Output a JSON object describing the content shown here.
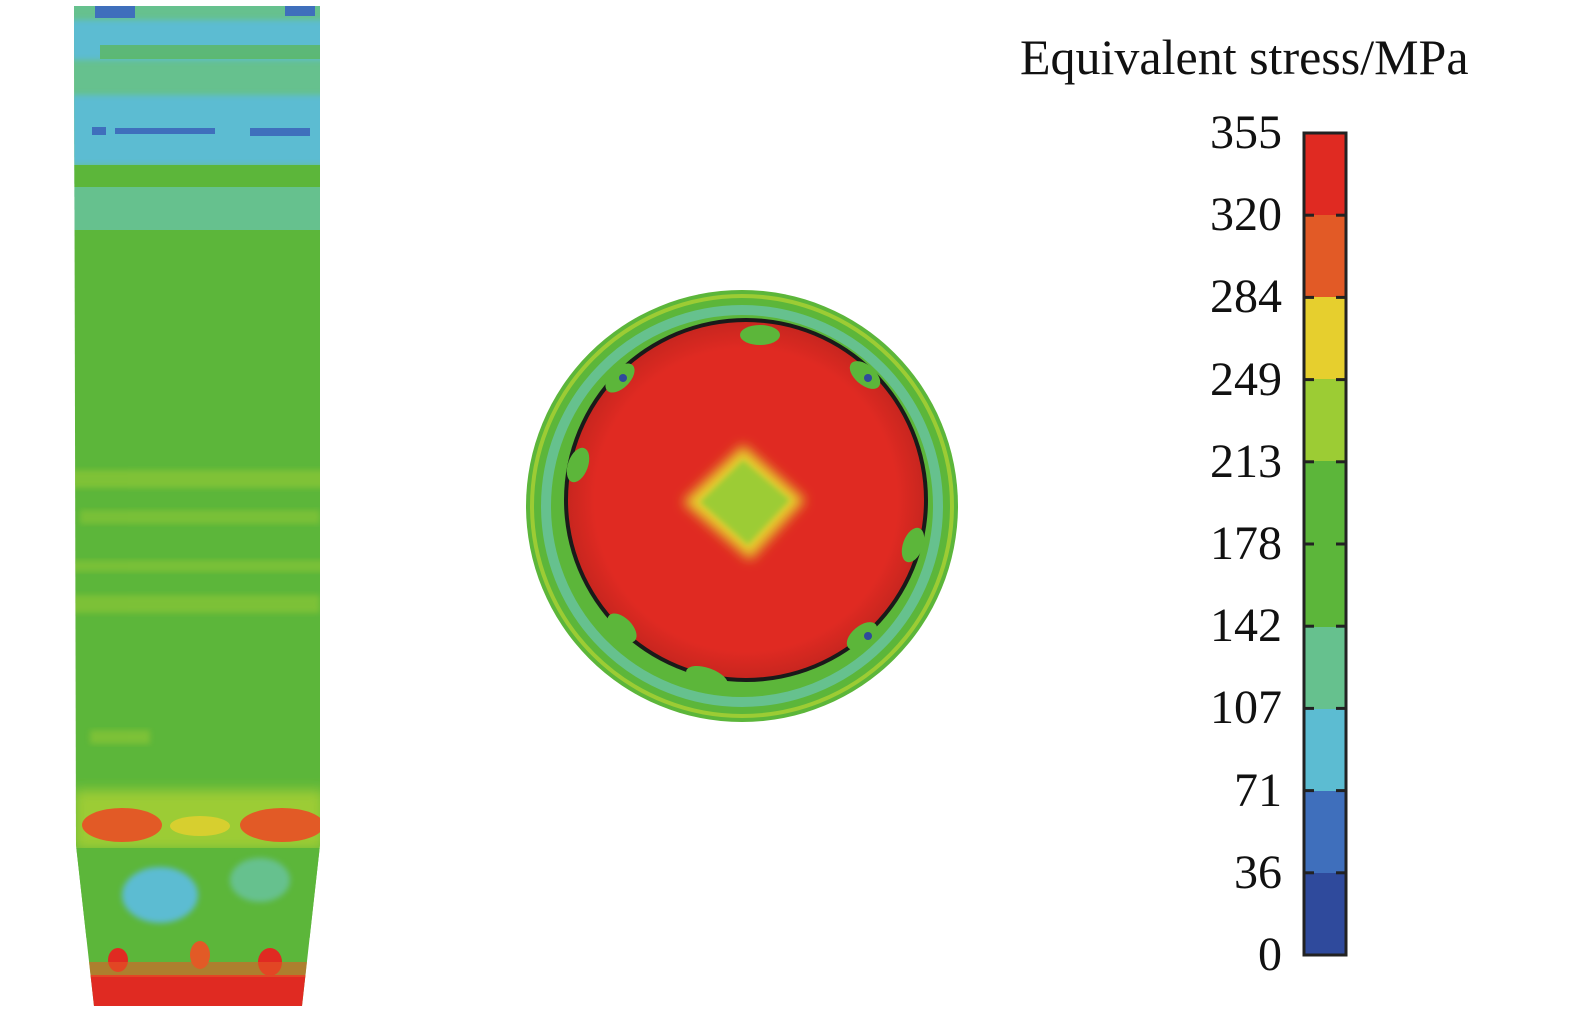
{
  "legend": {
    "title": "Equivalent stress/MPa",
    "ticks": [
      "355",
      "320",
      "284",
      "249",
      "213",
      "178",
      "142",
      "107",
      "71",
      "36",
      "0"
    ],
    "bands_top_to_bottom": [
      "#e02a22",
      "#e25a26",
      "#e6cf2e",
      "#9ccc34",
      "#5cb63a",
      "#5cb63a",
      "#66c18e",
      "#5cbcd2",
      "#3f6fbc",
      "#2f4a9c"
    ]
  },
  "colors": {
    "red": "#e02a22",
    "orange": "#e25a26",
    "yellow": "#e6cf2e",
    "light_green": "#9ccc34",
    "green": "#5cb63a",
    "teal": "#66c18e",
    "cyan": "#5cbcd2",
    "blue": "#3f6fbc",
    "dark_blue": "#2f4a9c"
  }
}
